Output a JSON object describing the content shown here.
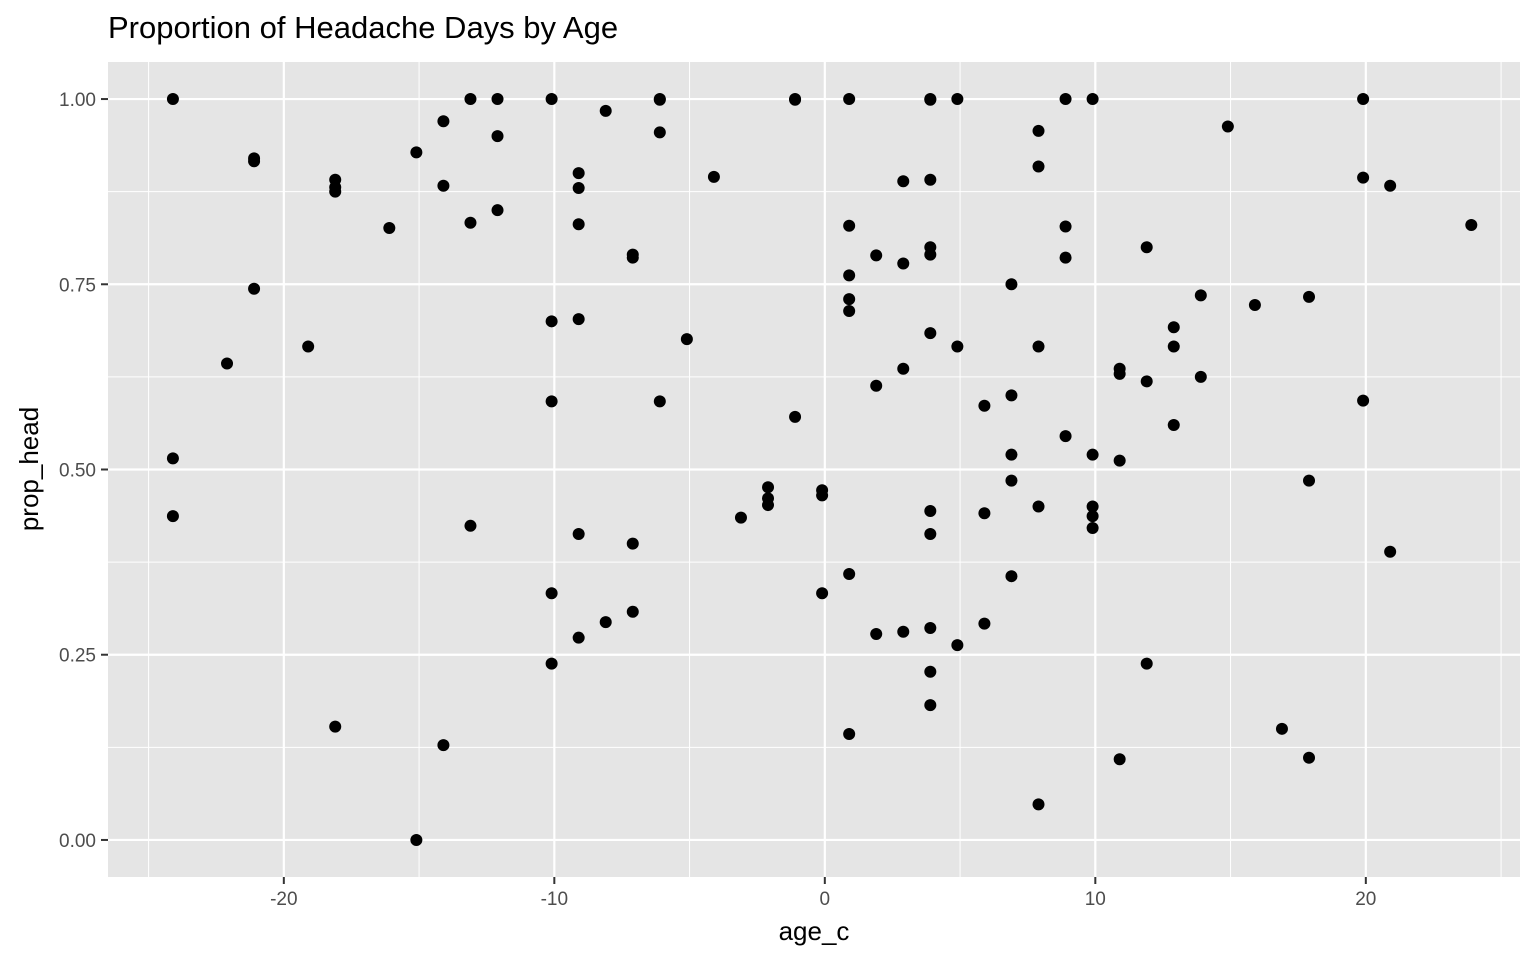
{
  "chart_data": {
    "type": "scatter",
    "title": "Proportion of Headache Days by Age",
    "xlabel": "age_c",
    "ylabel": "prop_head",
    "xlim": [
      -26.5,
      25.7
    ],
    "ylim": [
      -0.05,
      1.05
    ],
    "x_ticks": [
      -20,
      -10,
      0,
      10,
      20
    ],
    "x_tick_labels": [
      "-20",
      "-10",
      "0",
      "10",
      "20"
    ],
    "y_ticks": [
      0,
      0.25,
      0.5,
      0.75,
      1
    ],
    "y_tick_labels": [
      "0.00",
      "0.25",
      "0.50",
      "0.75",
      "1.00"
    ],
    "grid": true,
    "panel_background": "#e5e5e5",
    "grid_color": "#ffffff",
    "point_color": "#000000",
    "legend": "none",
    "points": [
      [
        -24.1,
        1.0
      ],
      [
        -24.1,
        0.515
      ],
      [
        -24.1,
        0.437
      ],
      [
        -22.1,
        0.643
      ],
      [
        -21.1,
        0.92
      ],
      [
        -21.1,
        0.916
      ],
      [
        -21.1,
        0.744
      ],
      [
        -19.1,
        0.666
      ],
      [
        -18.1,
        0.891
      ],
      [
        -18.1,
        0.881
      ],
      [
        -18.1,
        0.875
      ],
      [
        -18.1,
        0.153
      ],
      [
        -16.1,
        0.826
      ],
      [
        -15.1,
        0.928
      ],
      [
        -15.1,
        0.0
      ],
      [
        -14.1,
        0.97
      ],
      [
        -14.1,
        0.883
      ],
      [
        -14.1,
        0.128
      ],
      [
        -13.1,
        1.0
      ],
      [
        -13.1,
        0.833
      ],
      [
        -13.1,
        0.424
      ],
      [
        -12.1,
        1.0
      ],
      [
        -12.1,
        0.95
      ],
      [
        -12.1,
        0.85
      ],
      [
        -10.1,
        1.0
      ],
      [
        -10.1,
        0.7
      ],
      [
        -10.1,
        0.592
      ],
      [
        -10.1,
        0.333
      ],
      [
        -10.1,
        0.238
      ],
      [
        -9.1,
        0.9
      ],
      [
        -9.1,
        0.88
      ],
      [
        -9.1,
        0.831
      ],
      [
        -9.1,
        0.703
      ],
      [
        -9.1,
        0.413
      ],
      [
        -9.1,
        0.273
      ],
      [
        -8.1,
        0.984
      ],
      [
        -8.1,
        0.294
      ],
      [
        -7.1,
        0.79
      ],
      [
        -7.1,
        0.786
      ],
      [
        -7.1,
        0.4
      ],
      [
        -7.1,
        0.308
      ],
      [
        -6.1,
        1.0
      ],
      [
        -6.1,
        0.999
      ],
      [
        -6.1,
        0.955
      ],
      [
        -6.1,
        0.592
      ],
      [
        -5.1,
        0.676
      ],
      [
        -4.1,
        0.895
      ],
      [
        -3.1,
        0.435
      ],
      [
        -2.1,
        0.476
      ],
      [
        -2.1,
        0.461
      ],
      [
        -2.1,
        0.452
      ],
      [
        -1.1,
        1.0
      ],
      [
        -1.1,
        0.999
      ],
      [
        -1.1,
        0.571
      ],
      [
        -0.1,
        0.472
      ],
      [
        -0.1,
        0.465
      ],
      [
        -0.1,
        0.333
      ],
      [
        0.9,
        1.0
      ],
      [
        0.9,
        0.829
      ],
      [
        0.9,
        0.762
      ],
      [
        0.9,
        0.73
      ],
      [
        0.9,
        0.714
      ],
      [
        0.9,
        0.359
      ],
      [
        0.9,
        0.143
      ],
      [
        1.9,
        0.789
      ],
      [
        1.9,
        0.613
      ],
      [
        1.9,
        0.278
      ],
      [
        2.9,
        0.889
      ],
      [
        2.9,
        0.778
      ],
      [
        2.9,
        0.636
      ],
      [
        2.9,
        0.281
      ],
      [
        3.9,
        1.0
      ],
      [
        3.9,
        0.999
      ],
      [
        3.9,
        0.891
      ],
      [
        3.9,
        0.8
      ],
      [
        3.9,
        0.79
      ],
      [
        3.9,
        0.684
      ],
      [
        3.9,
        0.444
      ],
      [
        3.9,
        0.413
      ],
      [
        3.9,
        0.286
      ],
      [
        3.9,
        0.227
      ],
      [
        3.9,
        0.182
      ],
      [
        4.9,
        1.0
      ],
      [
        4.9,
        0.666
      ],
      [
        4.9,
        0.263
      ],
      [
        5.9,
        0.586
      ],
      [
        5.9,
        0.441
      ],
      [
        5.9,
        0.292
      ],
      [
        6.9,
        0.75
      ],
      [
        6.9,
        0.6
      ],
      [
        6.9,
        0.52
      ],
      [
        6.9,
        0.485
      ],
      [
        6.9,
        0.356
      ],
      [
        7.9,
        0.957
      ],
      [
        7.9,
        0.909
      ],
      [
        7.9,
        0.666
      ],
      [
        7.9,
        0.45
      ],
      [
        7.9,
        0.048
      ],
      [
        8.9,
        1.0
      ],
      [
        8.9,
        0.828
      ],
      [
        8.9,
        0.786
      ],
      [
        8.9,
        0.545
      ],
      [
        9.9,
        1.0
      ],
      [
        9.9,
        0.52
      ],
      [
        9.9,
        0.45
      ],
      [
        9.9,
        0.437
      ],
      [
        9.9,
        0.421
      ],
      [
        10.9,
        0.636
      ],
      [
        10.9,
        0.629
      ],
      [
        10.9,
        0.512
      ],
      [
        10.9,
        0.109
      ],
      [
        11.9,
        0.8
      ],
      [
        11.9,
        0.619
      ],
      [
        11.9,
        0.238
      ],
      [
        12.9,
        0.692
      ],
      [
        12.9,
        0.666
      ],
      [
        12.9,
        0.56
      ],
      [
        13.9,
        0.735
      ],
      [
        13.9,
        0.625
      ],
      [
        14.9,
        0.963
      ],
      [
        15.9,
        0.722
      ],
      [
        16.9,
        0.15
      ],
      [
        17.9,
        0.733
      ],
      [
        17.9,
        0.485
      ],
      [
        17.9,
        0.111
      ],
      [
        19.9,
        1.0
      ],
      [
        19.9,
        0.894
      ],
      [
        19.9,
        0.593
      ],
      [
        20.9,
        0.883
      ],
      [
        20.9,
        0.389
      ],
      [
        23.9,
        0.83
      ]
    ]
  }
}
